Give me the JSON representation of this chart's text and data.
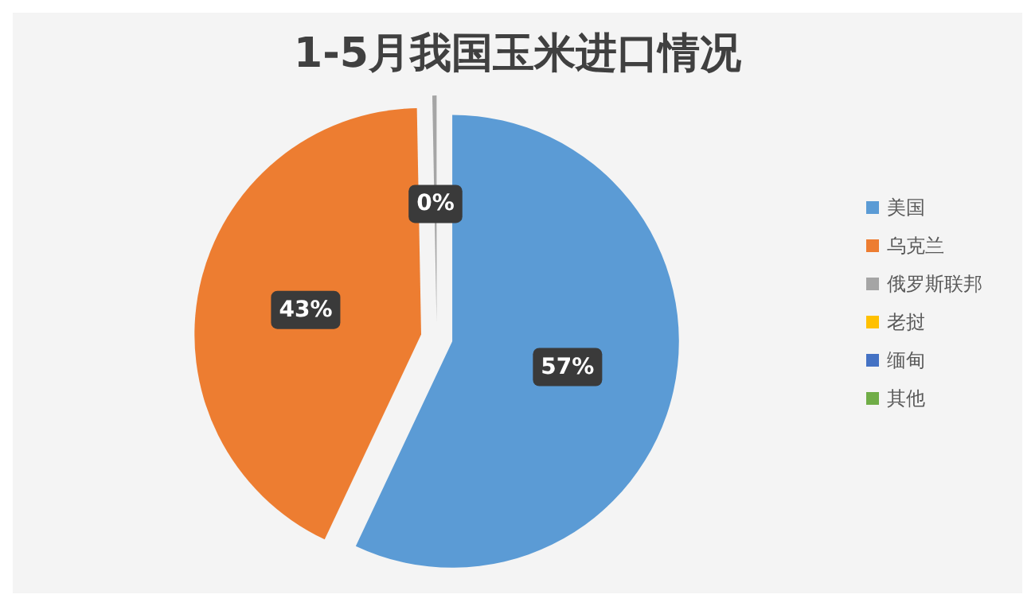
{
  "chart_data": {
    "type": "pie",
    "title": "1-5月我国玉米进口情况",
    "categories": [
      "美国",
      "乌克兰",
      "俄罗斯联邦",
      "老挝",
      "缅甸",
      "其他"
    ],
    "values": [
      57,
      42.7,
      0.3,
      0,
      0,
      0
    ],
    "value_labels": [
      "57%",
      "43%",
      "0%",
      null,
      null,
      null
    ],
    "colors": [
      "#5b9bd5",
      "#ed7d31",
      "#a5a5a5",
      "#ffc000",
      "#4472c4",
      "#70ad47"
    ],
    "legend": "right"
  }
}
